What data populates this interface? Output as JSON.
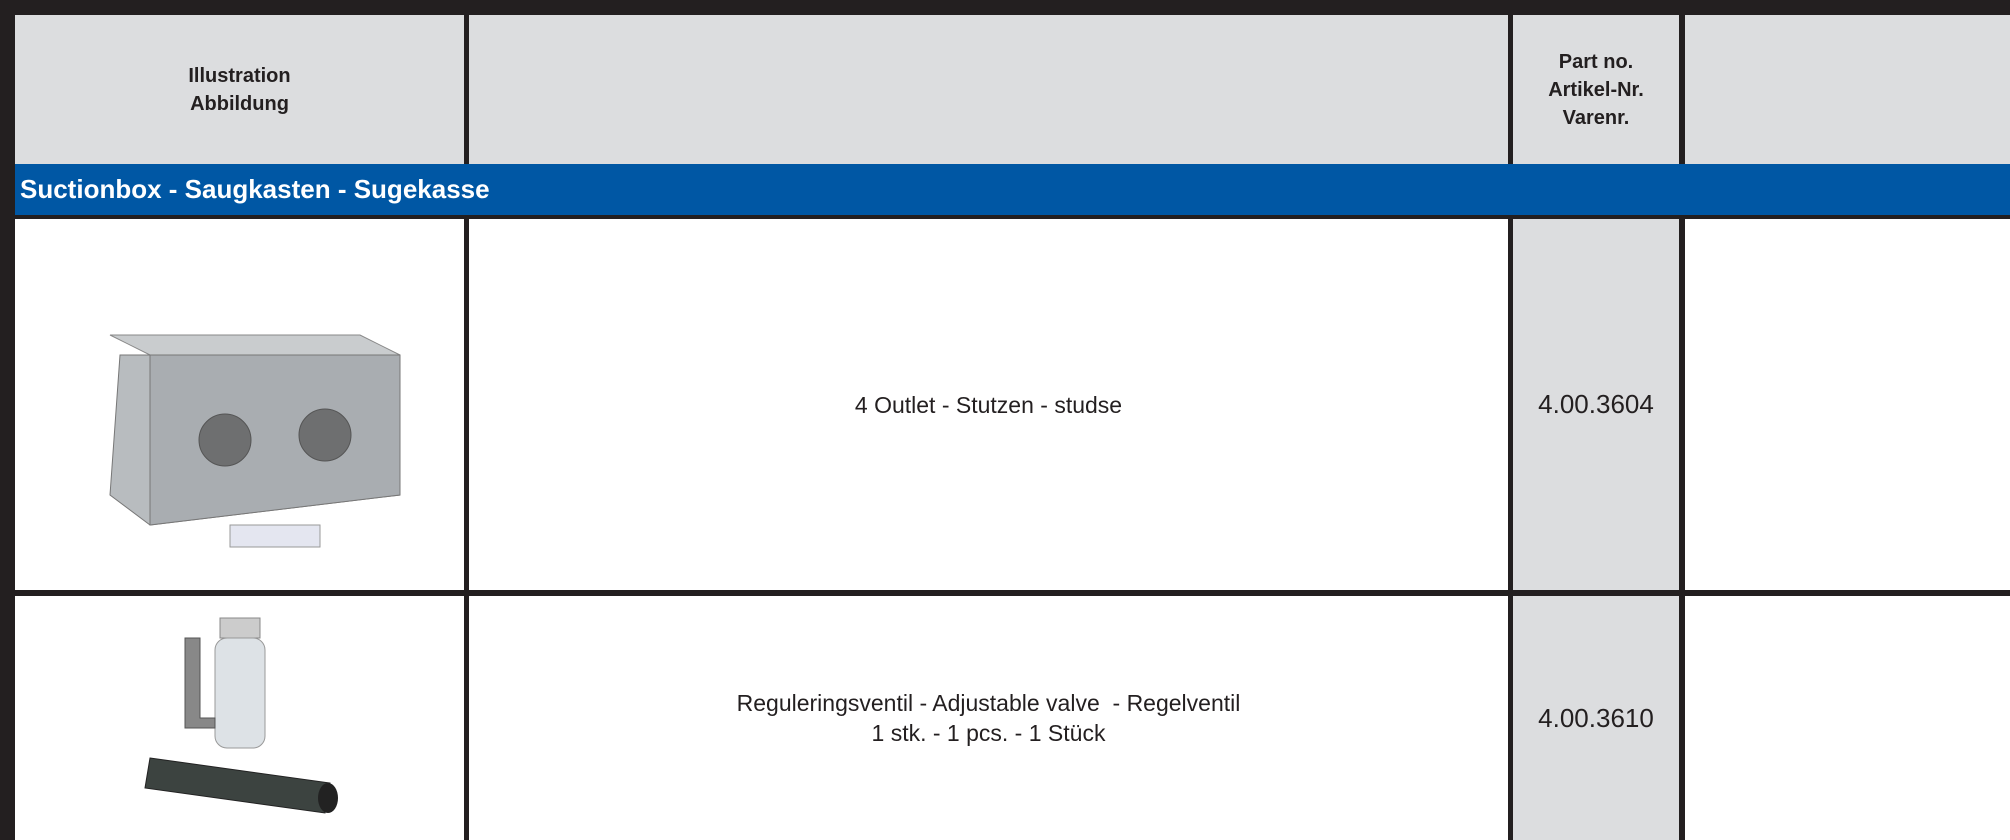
{
  "header": {
    "illustration": [
      "Illustration",
      "Abbildung"
    ],
    "part_no": [
      "Part no.",
      "Artikel-Nr.",
      "Varenr."
    ]
  },
  "section": "Suctionbox - Saugkasten - Sugekasse",
  "rows": [
    {
      "description": [
        "4 Outlet - Stutzen - studse"
      ],
      "part_no": "4.00.3604"
    },
    {
      "description": [
        "Reguleringsventil - Adjustable valve  - Regelventil",
        "1 stk. - 1 pcs. - 1 Stück"
      ],
      "part_no": "4.00.3610"
    }
  ]
}
